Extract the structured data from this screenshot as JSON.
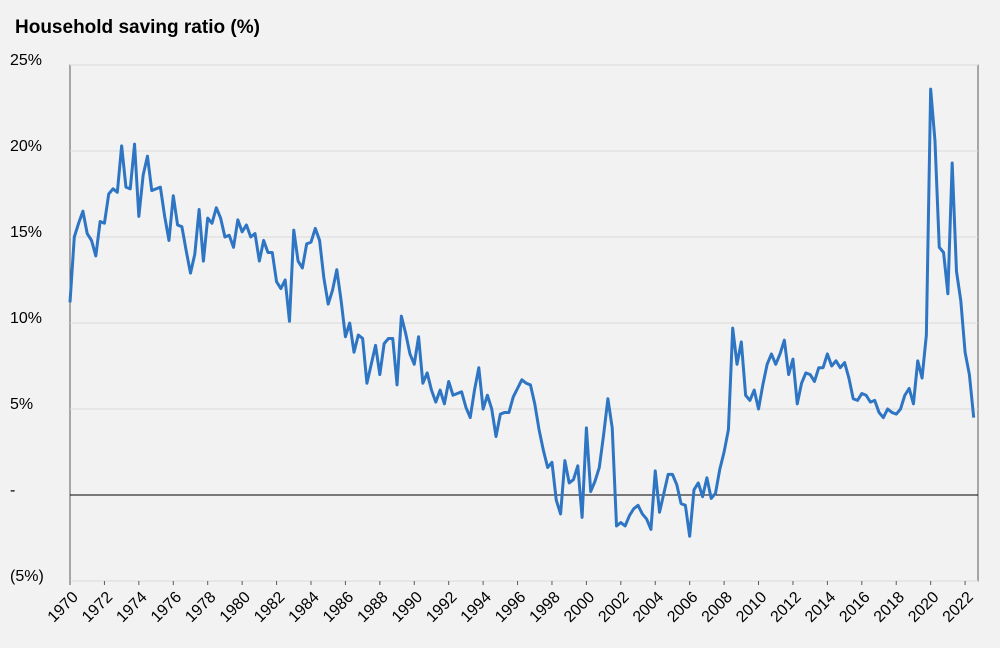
{
  "chart_data": {
    "type": "line",
    "title": "Household saving ratio (%)",
    "x": [
      1970,
      1970.25,
      1970.5,
      1970.75,
      1971,
      1971.25,
      1971.5,
      1971.75,
      1972,
      1972.25,
      1972.5,
      1972.75,
      1973,
      1973.25,
      1973.5,
      1973.75,
      1974,
      1974.25,
      1974.5,
      1974.75,
      1975,
      1975.25,
      1975.5,
      1975.75,
      1976,
      1976.25,
      1976.5,
      1976.75,
      1977,
      1977.25,
      1977.5,
      1977.75,
      1978,
      1978.25,
      1978.5,
      1978.75,
      1979,
      1979.25,
      1979.5,
      1979.75,
      1980,
      1980.25,
      1980.5,
      1980.75,
      1981,
      1981.25,
      1981.5,
      1981.75,
      1982,
      1982.25,
      1982.5,
      1982.75,
      1983,
      1983.25,
      1983.5,
      1983.75,
      1984,
      1984.25,
      1984.5,
      1984.75,
      1985,
      1985.25,
      1985.5,
      1985.75,
      1986,
      1986.25,
      1986.5,
      1986.75,
      1987,
      1987.25,
      1987.5,
      1987.75,
      1988,
      1988.25,
      1988.5,
      1988.75,
      1989,
      1989.25,
      1989.5,
      1989.75,
      1990,
      1990.25,
      1990.5,
      1990.75,
      1991,
      1991.25,
      1991.5,
      1991.75,
      1992,
      1992.25,
      1992.5,
      1992.75,
      1993,
      1993.25,
      1993.5,
      1993.75,
      1994,
      1994.25,
      1994.5,
      1994.75,
      1995,
      1995.25,
      1995.5,
      1995.75,
      1996,
      1996.25,
      1996.5,
      1996.75,
      1997,
      1997.25,
      1997.5,
      1997.75,
      1998,
      1998.25,
      1998.5,
      1998.75,
      1999,
      1999.25,
      1999.5,
      1999.75,
      2000,
      2000.25,
      2000.5,
      2000.75,
      2001,
      2001.25,
      2001.5,
      2001.75,
      2002,
      2002.25,
      2002.5,
      2002.75,
      2003,
      2003.25,
      2003.5,
      2003.75,
      2004,
      2004.25,
      2004.5,
      2004.75,
      2005,
      2005.25,
      2005.5,
      2005.75,
      2006,
      2006.25,
      2006.5,
      2006.75,
      2007,
      2007.25,
      2007.5,
      2007.75,
      2008,
      2008.25,
      2008.5,
      2008.75,
      2009,
      2009.25,
      2009.5,
      2009.75,
      2010,
      2010.25,
      2010.5,
      2010.75,
      2011,
      2011.25,
      2011.5,
      2011.75,
      2012,
      2012.25,
      2012.5,
      2012.75,
      2013,
      2013.25,
      2013.5,
      2013.75,
      2014,
      2014.25,
      2014.5,
      2014.75,
      2015,
      2015.25,
      2015.5,
      2015.75,
      2016,
      2016.25,
      2016.5,
      2016.75,
      2017,
      2017.25,
      2017.5,
      2017.75,
      2018,
      2018.25,
      2018.5,
      2018.75,
      2019,
      2019.25,
      2019.5,
      2019.75,
      2020,
      2020.25,
      2020.5,
      2020.75,
      2021,
      2021.25,
      2021.5,
      2021.75,
      2022,
      2022.25,
      2022.5
    ],
    "series": [
      {
        "color": "#2e75c4",
        "values": [
          11.2,
          15.0,
          15.8,
          16.5,
          15.2,
          14.8,
          13.9,
          15.9,
          15.8,
          17.5,
          17.8,
          17.6,
          20.3,
          17.9,
          17.8,
          20.4,
          16.2,
          18.6,
          19.7,
          17.7,
          17.8,
          17.9,
          16.2,
          14.8,
          17.4,
          15.7,
          15.6,
          14.2,
          12.9,
          14.0,
          16.6,
          13.6,
          16.1,
          15.8,
          16.7,
          16.1,
          15.0,
          15.1,
          14.4,
          16.0,
          15.3,
          15.7,
          15.0,
          15.2,
          13.6,
          14.8,
          14.1,
          14.1,
          12.4,
          12.0,
          12.5,
          10.1,
          15.4,
          13.6,
          13.2,
          14.6,
          14.7,
          15.5,
          14.8,
          12.6,
          11.1,
          11.9,
          13.1,
          11.3,
          9.2,
          10.0,
          8.3,
          9.3,
          9.1,
          6.5,
          7.6,
          8.7,
          7.0,
          8.8,
          9.1,
          9.1,
          6.4,
          10.4,
          9.4,
          8.2,
          7.6,
          9.2,
          6.5,
          7.1,
          6.1,
          5.4,
          6.1,
          5.3,
          6.6,
          5.8,
          5.9,
          6.0,
          5.1,
          4.5,
          6.1,
          7.4,
          5.0,
          5.8,
          5.0,
          3.4,
          4.7,
          4.8,
          4.8,
          5.7,
          6.2,
          6.7,
          6.5,
          6.4,
          5.3,
          3.8,
          2.6,
          1.6,
          1.9,
          -0.3,
          -1.1,
          2.0,
          0.7,
          0.9,
          1.7,
          -1.3,
          3.9,
          0.2,
          0.8,
          1.6,
          3.5,
          5.6,
          3.9,
          -1.8,
          -1.6,
          -1.8,
          -1.2,
          -0.8,
          -0.6,
          -1.1,
          -1.4,
          -2.0,
          1.4,
          -1.0,
          0.1,
          1.2,
          1.2,
          0.6,
          -0.5,
          -0.6,
          -2.4,
          0.3,
          0.7,
          -0.1,
          1.0,
          -0.2,
          0.1,
          1.5,
          2.5,
          3.8,
          9.7,
          7.6,
          8.9,
          5.8,
          5.5,
          6.1,
          5.0,
          6.4,
          7.6,
          8.2,
          7.6,
          8.2,
          9.0,
          7.0,
          7.9,
          5.3,
          6.5,
          7.1,
          7.0,
          6.6,
          7.4,
          7.4,
          8.2,
          7.5,
          7.8,
          7.4,
          7.7,
          6.8,
          5.6,
          5.5,
          5.9,
          5.8,
          5.4,
          5.5,
          4.8,
          4.5,
          5.0,
          4.8,
          4.7,
          5.0,
          5.8,
          6.2,
          5.3,
          7.8,
          6.8,
          9.3,
          23.6,
          20.6,
          14.4,
          14.1,
          11.7,
          19.3,
          13.0,
          11.3,
          8.3,
          7.0,
          4.5
        ]
      }
    ],
    "xlim": [
      1970,
      2022.75
    ],
    "xticks": [
      1970,
      1972,
      1974,
      1976,
      1978,
      1980,
      1982,
      1984,
      1986,
      1988,
      1990,
      1992,
      1994,
      1996,
      1998,
      2000,
      2002,
      2004,
      2006,
      2008,
      2010,
      2012,
      2014,
      2016,
      2018,
      2020,
      2022
    ],
    "ylim": [
      -5,
      25
    ],
    "yticks": [
      {
        "value": -5,
        "label": "(5%)"
      },
      {
        "value": 0,
        "label": "-"
      },
      {
        "value": 5,
        "label": "5%"
      },
      {
        "value": 10,
        "label": "10%"
      },
      {
        "value": 15,
        "label": "15%"
      },
      {
        "value": 20,
        "label": "20%"
      },
      {
        "value": 25,
        "label": "25%"
      }
    ],
    "grid": true
  }
}
